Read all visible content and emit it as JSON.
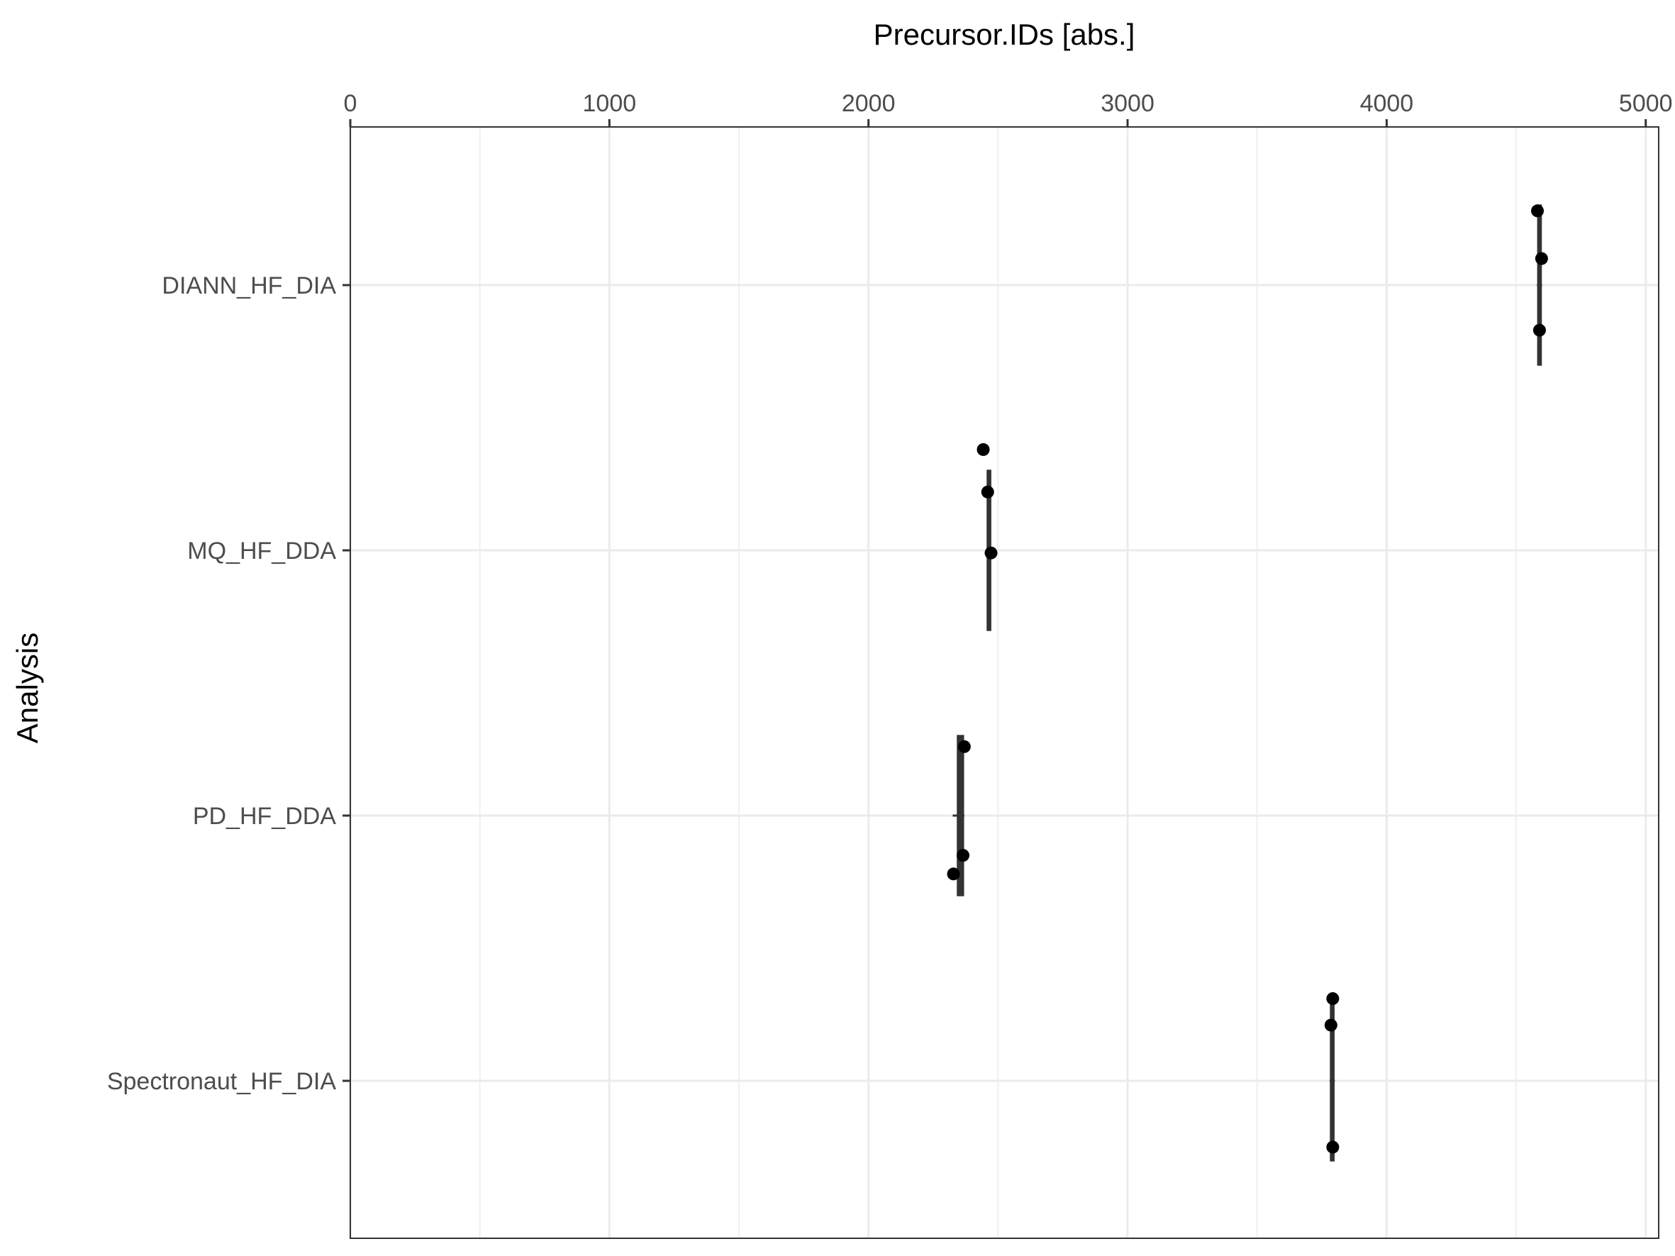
{
  "chart_data": {
    "type": "boxplot",
    "orientation": "horizontal",
    "xlabel": "Precursor.IDs  [abs.]",
    "ylabel": "Analysis",
    "xlim": [
      0,
      5050
    ],
    "x_ticks": [
      0,
      1000,
      2000,
      3000,
      4000,
      5000
    ],
    "x_tick_labels": [
      "0",
      "1000",
      "2000",
      "3000",
      "4000",
      "5000"
    ],
    "x_axis_position": "top",
    "grid": true,
    "categories": [
      "DIANN_HF_DIA",
      "MQ_HF_DDA",
      "PD_HF_DDA",
      "Spectronaut_HF_DIA"
    ],
    "boxes": [
      {
        "category": "DIANN_HF_DIA",
        "min": 4580,
        "q1": 4585,
        "median": 4590,
        "q3": 4595,
        "max": 4600
      },
      {
        "category": "MQ_HF_DDA",
        "min": 2455,
        "q1": 2460,
        "median": 2465,
        "q3": 2470,
        "max": 2475
      },
      {
        "category": "PD_HF_DDA",
        "min": 2325,
        "q1": 2345,
        "median": 2355,
        "q3": 2365,
        "max": 2370
      },
      {
        "category": "Spectronaut_HF_DIA",
        "min": 3780,
        "q1": 3785,
        "median": 3790,
        "q3": 3795,
        "max": 3800
      }
    ],
    "points": [
      {
        "category": "DIANN_HF_DIA",
        "x": 4582,
        "jitter": -0.28
      },
      {
        "category": "DIANN_HF_DIA",
        "x": 4598,
        "jitter": -0.1
      },
      {
        "category": "DIANN_HF_DIA",
        "x": 4590,
        "jitter": 0.17
      },
      {
        "category": "MQ_HF_DDA",
        "x": 2443,
        "jitter": -0.38
      },
      {
        "category": "MQ_HF_DDA",
        "x": 2460,
        "jitter": -0.22
      },
      {
        "category": "MQ_HF_DDA",
        "x": 2473,
        "jitter": 0.01
      },
      {
        "category": "PD_HF_DDA",
        "x": 2370,
        "jitter": -0.26
      },
      {
        "category": "PD_HF_DDA",
        "x": 2365,
        "jitter": 0.15
      },
      {
        "category": "PD_HF_DDA",
        "x": 2328,
        "jitter": 0.22
      },
      {
        "category": "Spectronaut_HF_DIA",
        "x": 3792,
        "jitter": -0.31
      },
      {
        "category": "Spectronaut_HF_DIA",
        "x": 3785,
        "jitter": -0.21
      },
      {
        "category": "Spectronaut_HF_DIA",
        "x": 3792,
        "jitter": 0.25
      }
    ],
    "colors": {
      "box": "#333333",
      "point": "#000000",
      "grid": "#ebebeb",
      "border": "#333333",
      "text": "#4d4d4d"
    }
  }
}
